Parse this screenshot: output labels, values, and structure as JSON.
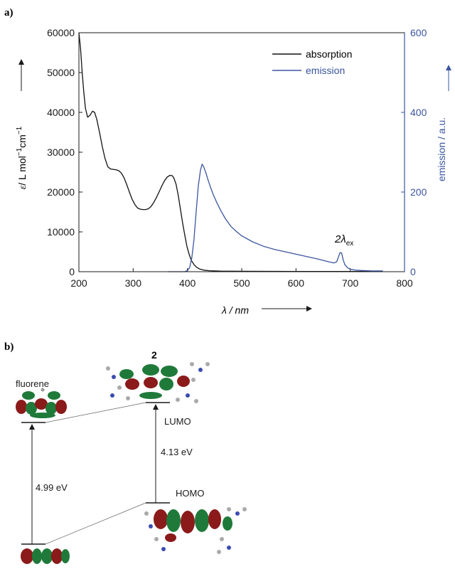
{
  "panel_a_label": "a)",
  "panel_b_label": "b)",
  "colors": {
    "absorption": "#111111",
    "emission": "#3a55a0"
  },
  "chart_data": {
    "type": "line",
    "x": {
      "label": "λ / nm",
      "lim": [
        200,
        800
      ],
      "ticks": [
        "200",
        "300",
        "400",
        "500",
        "600",
        "700",
        "800"
      ]
    },
    "y_left": {
      "label_symbol": "ε",
      "label_rest": "/ L mol",
      "label_sup1": "−1",
      "label_mid": "cm",
      "label_sup2": "−1",
      "lim": [
        0,
        60000
      ],
      "ticks": [
        "0",
        "10000",
        "20000",
        "30000",
        "40000",
        "50000",
        "60000"
      ]
    },
    "y_right": {
      "label": "emission / a.u.",
      "lim": [
        0,
        600
      ],
      "ticks": [
        "0",
        "200",
        "400",
        "600"
      ]
    },
    "legend": [
      "absorption",
      "emission"
    ],
    "annotation": {
      "main": "2λ",
      "sub": "ex"
    },
    "series": [
      {
        "name": "absorption",
        "axis": "left",
        "points": [
          [
            200,
            60000
          ],
          [
            203,
            56000
          ],
          [
            206,
            50000
          ],
          [
            209,
            45000
          ],
          [
            212,
            41000
          ],
          [
            216,
            38800
          ],
          [
            220,
            39200
          ],
          [
            225,
            40300
          ],
          [
            229,
            40000
          ],
          [
            233,
            38200
          ],
          [
            238,
            35000
          ],
          [
            243,
            31500
          ],
          [
            248,
            28500
          ],
          [
            253,
            26400
          ],
          [
            258,
            25800
          ],
          [
            263,
            25700
          ],
          [
            268,
            25600
          ],
          [
            273,
            25400
          ],
          [
            278,
            24800
          ],
          [
            283,
            23600
          ],
          [
            288,
            21900
          ],
          [
            293,
            20000
          ],
          [
            298,
            18200
          ],
          [
            303,
            16900
          ],
          [
            308,
            16000
          ],
          [
            313,
            15700
          ],
          [
            318,
            15600
          ],
          [
            323,
            15600
          ],
          [
            328,
            15800
          ],
          [
            333,
            16400
          ],
          [
            338,
            17400
          ],
          [
            343,
            18700
          ],
          [
            348,
            20100
          ],
          [
            353,
            21600
          ],
          [
            358,
            22900
          ],
          [
            363,
            23800
          ],
          [
            368,
            24200
          ],
          [
            372,
            24100
          ],
          [
            375,
            23500
          ],
          [
            379,
            22000
          ],
          [
            383,
            19200
          ],
          [
            387,
            15800
          ],
          [
            391,
            12300
          ],
          [
            395,
            9200
          ],
          [
            399,
            6400
          ],
          [
            403,
            4400
          ],
          [
            407,
            2900
          ],
          [
            412,
            1800
          ],
          [
            417,
            1100
          ],
          [
            422,
            700
          ],
          [
            430,
            400
          ],
          [
            440,
            250
          ],
          [
            460,
            150
          ],
          [
            500,
            100
          ],
          [
            600,
            80
          ],
          [
            700,
            60
          ],
          [
            760,
            50
          ]
        ]
      },
      {
        "name": "emission",
        "axis": "right",
        "points": [
          [
            365,
            0
          ],
          [
            395,
            0
          ],
          [
            400,
            3
          ],
          [
            404,
            10
          ],
          [
            408,
            35
          ],
          [
            412,
            80
          ],
          [
            416,
            150
          ],
          [
            420,
            215
          ],
          [
            424,
            255
          ],
          [
            427,
            270
          ],
          [
            430,
            263
          ],
          [
            434,
            248
          ],
          [
            438,
            230
          ],
          [
            443,
            210
          ],
          [
            448,
            192
          ],
          [
            455,
            171
          ],
          [
            462,
            152
          ],
          [
            470,
            133
          ],
          [
            480,
            114
          ],
          [
            490,
            101
          ],
          [
            500,
            90
          ],
          [
            520,
            75
          ],
          [
            540,
            64
          ],
          [
            560,
            56
          ],
          [
            580,
            50
          ],
          [
            600,
            44
          ],
          [
            620,
            38
          ],
          [
            640,
            32
          ],
          [
            660,
            25
          ],
          [
            670,
            22
          ],
          [
            675,
            25
          ],
          [
            678,
            36
          ],
          [
            681,
            48
          ],
          [
            684,
            47
          ],
          [
            687,
            30
          ],
          [
            690,
            18
          ],
          [
            695,
            10
          ],
          [
            700,
            6
          ],
          [
            710,
            4
          ],
          [
            720,
            3
          ],
          [
            740,
            2
          ],
          [
            760,
            2
          ]
        ]
      }
    ]
  },
  "diagram": {
    "title": "2",
    "fluorene_label": "fluorene",
    "lumo_label": "LUMO",
    "homo_label": "HOMO",
    "gap_fluorene": "4.99 eV",
    "gap_2": "4.13 eV"
  }
}
